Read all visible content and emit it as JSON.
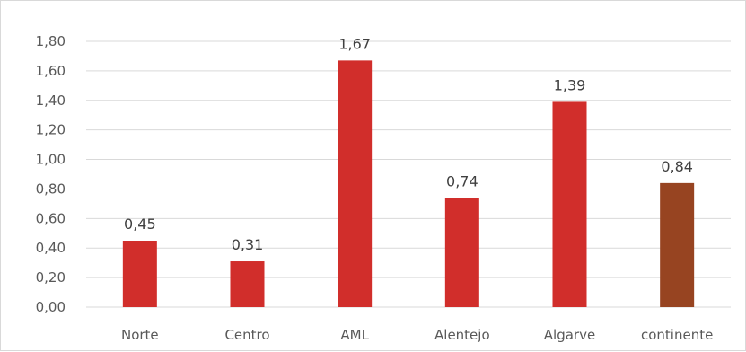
{
  "chart_data": {
    "type": "bar",
    "categories": [
      "Norte",
      "Centro",
      "AML",
      "Alentejo",
      "Algarve",
      "continente"
    ],
    "values": [
      0.45,
      0.31,
      1.67,
      0.74,
      1.39,
      0.84
    ],
    "value_labels": [
      "0,45",
      "0,31",
      "1,67",
      "0,74",
      "1,39",
      "0,84"
    ],
    "y_ticks": [
      "0,00",
      "0,20",
      "0,40",
      "0,60",
      "0,80",
      "1,00",
      "1,20",
      "1,40",
      "1,60",
      "1,80"
    ],
    "ylim": [
      0,
      1.8
    ],
    "grid": true,
    "legend": "none",
    "bar_colors": [
      "#d12e2b",
      "#d12e2b",
      "#d12e2b",
      "#d12e2b",
      "#d12e2b",
      "#974421"
    ]
  }
}
